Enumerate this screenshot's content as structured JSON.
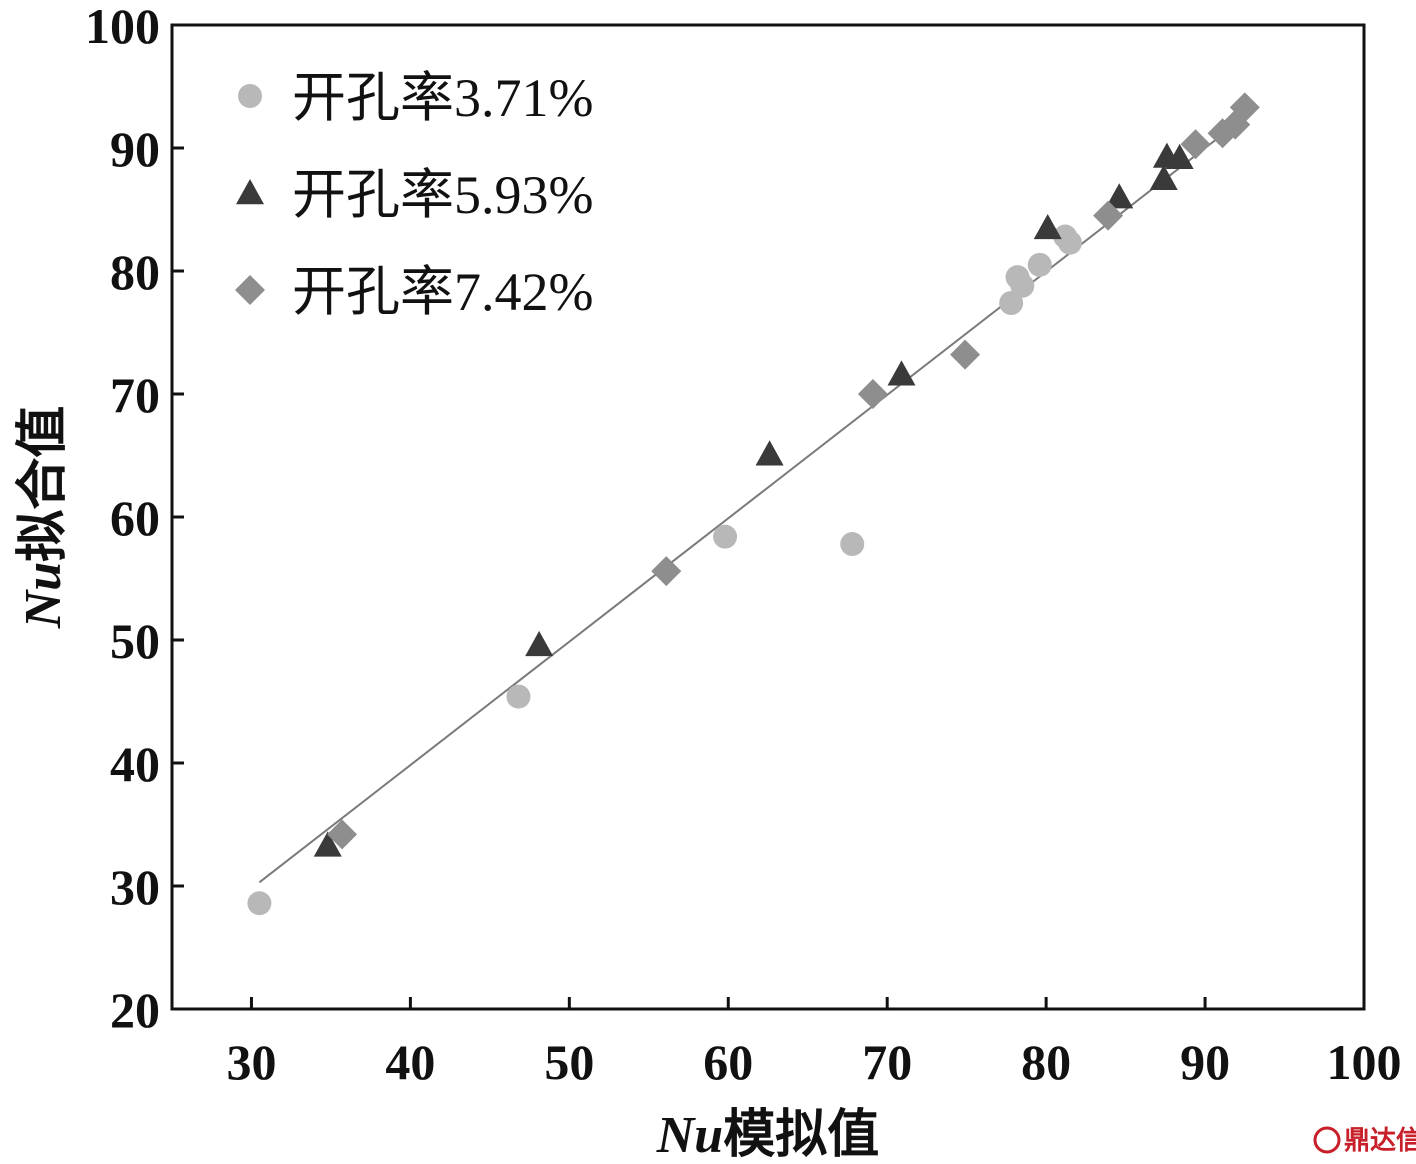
{
  "colors": {
    "series1": "#b8b8b8",
    "series2": "#3a3a3a",
    "series3": "#8e8e8e",
    "fit_line": "#7a7a7a",
    "watermark": "#c8202a"
  },
  "watermark": {
    "text": "鼎达信"
  },
  "chart_data": {
    "type": "scatter",
    "xlabel_var": "Nu",
    "xlabel_text": "模拟值",
    "ylabel_var": "Nu",
    "ylabel_text": "拟合值",
    "xlim": [
      25,
      100
    ],
    "ylim": [
      20,
      100
    ],
    "xticks": [
      30,
      40,
      50,
      60,
      70,
      80,
      90,
      100
    ],
    "yticks": [
      20,
      30,
      40,
      50,
      60,
      70,
      80,
      90,
      100
    ],
    "grid": false,
    "legend_position": "top-left",
    "series": [
      {
        "name": "开孔率3.71%",
        "marker": "circle",
        "points": [
          [
            30.5,
            28.6
          ],
          [
            46.8,
            45.4
          ],
          [
            59.8,
            58.4
          ],
          [
            67.8,
            57.8
          ],
          [
            77.8,
            77.4
          ],
          [
            78.2,
            79.5
          ],
          [
            78.5,
            78.8
          ],
          [
            79.6,
            80.5
          ],
          [
            81.2,
            82.8
          ],
          [
            81.5,
            82.3
          ]
        ]
      },
      {
        "name": "开孔率5.93%",
        "marker": "triangle",
        "points": [
          [
            34.8,
            33.3
          ],
          [
            48.1,
            49.6
          ],
          [
            62.6,
            65.1
          ],
          [
            70.9,
            71.6
          ],
          [
            80.1,
            83.5
          ],
          [
            84.6,
            86.0
          ],
          [
            87.4,
            87.5
          ],
          [
            87.6,
            89.3
          ],
          [
            88.4,
            89.2
          ]
        ]
      },
      {
        "name": "开孔率7.42%",
        "marker": "diamond",
        "points": [
          [
            35.7,
            34.2
          ],
          [
            56.1,
            55.6
          ],
          [
            69.1,
            70.0
          ],
          [
            74.9,
            73.2
          ],
          [
            83.9,
            84.5
          ],
          [
            89.4,
            90.3
          ],
          [
            91.1,
            91.2
          ],
          [
            91.9,
            91.9
          ],
          [
            92.5,
            93.3
          ]
        ]
      }
    ],
    "fit_line": {
      "x": [
        30.5,
        92.5
      ],
      "y": [
        30.3,
        92.5
      ]
    }
  }
}
